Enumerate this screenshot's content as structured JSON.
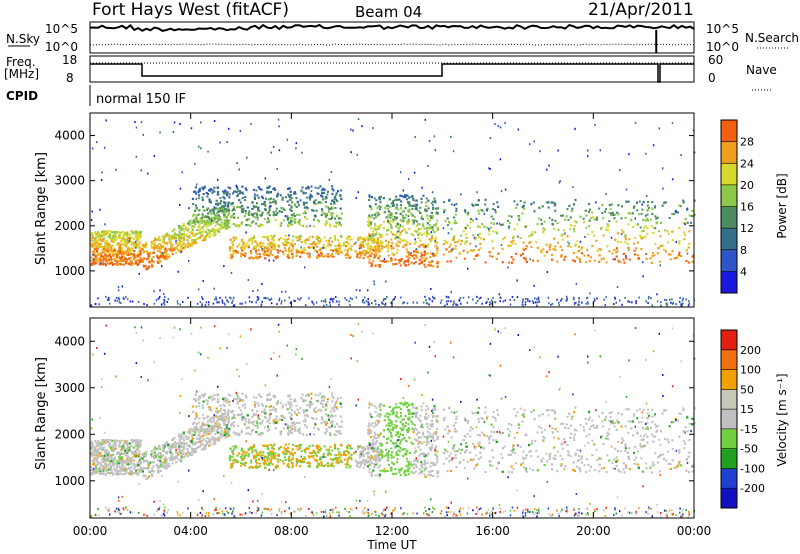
{
  "header": {
    "station": "Fort Hays West (fitACF)",
    "beam": "Beam 04",
    "date": "21/Apr/2011"
  },
  "top_panels": {
    "nsky_label": "N.Sky",
    "nsky_ticks": [
      "10^5",
      "10^0"
    ],
    "nsearch_label": "N.Search",
    "nsearch_ticks": [
      "10^5",
      "10^0"
    ],
    "freq_label": [
      "Freq.",
      "[MHz]"
    ],
    "freq_ticks": [
      "18",
      "8"
    ],
    "nave_label": "Nave",
    "nave_ticks": [
      "60",
      "0"
    ],
    "cpid_label": "CPID",
    "cpid_value": "normal 150 IF"
  },
  "colors": {
    "power": [
      "#1a1adc",
      "#2d55c8",
      "#34708c",
      "#4c8c60",
      "#8cc84a",
      "#d8d82e",
      "#f0a020",
      "#f06010",
      "#e82010"
    ],
    "velocity": [
      "#1010c0",
      "#2040d0",
      "#20a020",
      "#70d040",
      "#c0c0c0",
      "#c8c8b8",
      "#f0a000",
      "#f07010",
      "#e02010"
    ]
  },
  "chart_data": [
    {
      "type": "heatmap",
      "panel": "power",
      "xlabel": "",
      "ylabel": "Slant Range [km]",
      "yticks": [
        "1000",
        "2000",
        "3000",
        "4000"
      ],
      "ylim": [
        200,
        4500
      ],
      "colorbar_label": "Power [dB]",
      "colorbar_ticks": [
        "28",
        "24",
        "20",
        "16",
        "12",
        "8",
        "4"
      ],
      "scale_range": [
        0,
        32
      ]
    },
    {
      "type": "heatmap",
      "panel": "velocity",
      "xlabel": "Time UT",
      "ylabel": "Slant Range [km]",
      "yticks": [
        "1000",
        "2000",
        "3000",
        "4000"
      ],
      "xticks": [
        "00:00",
        "04:00",
        "08:00",
        "12:00",
        "16:00",
        "20:00",
        "00:00"
      ],
      "ylim": [
        200,
        4500
      ],
      "colorbar_label": "Velocity [m s⁻¹]",
      "colorbar_ticks": [
        "200",
        "100",
        "50",
        "15",
        "-15",
        "-50",
        "-100",
        "-200"
      ]
    }
  ]
}
